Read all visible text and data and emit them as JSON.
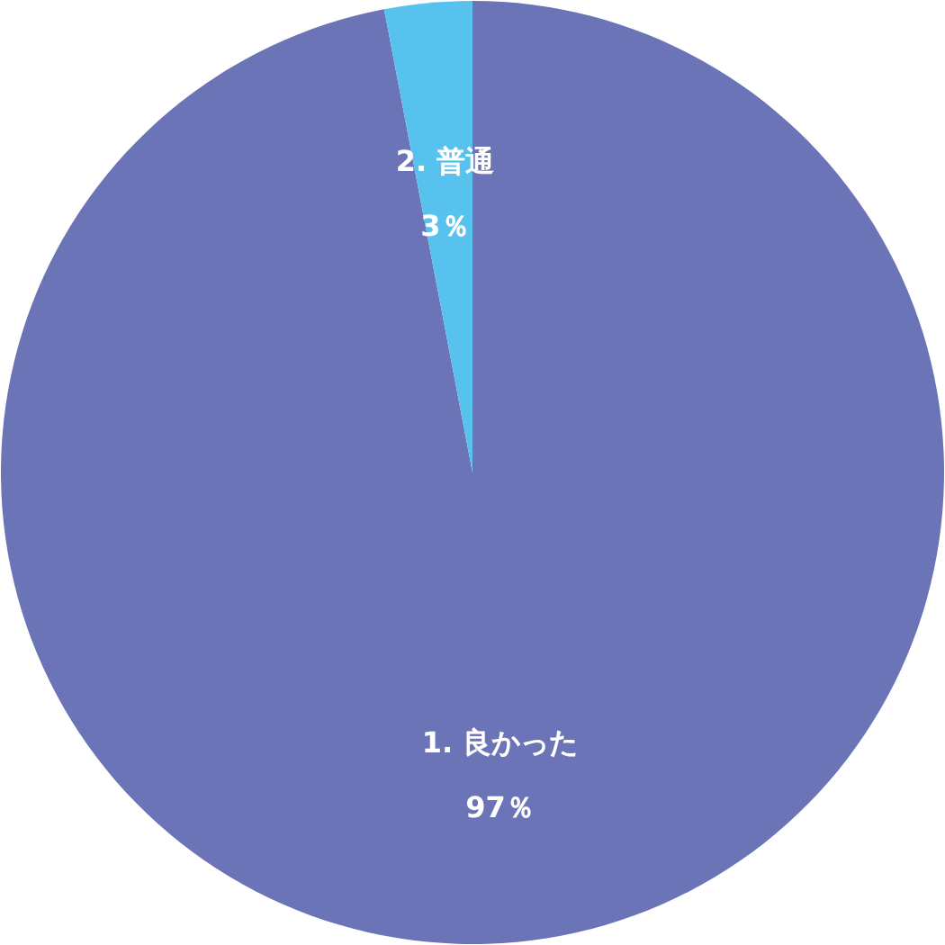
{
  "chart_data": {
    "type": "pie",
    "categories": [
      "1. 良かった",
      "2. 普通"
    ],
    "values": [
      97,
      3
    ],
    "colors": [
      "#6b74b6",
      "#57c2ee"
    ],
    "value_labels": [
      "97％",
      "3％"
    ]
  }
}
